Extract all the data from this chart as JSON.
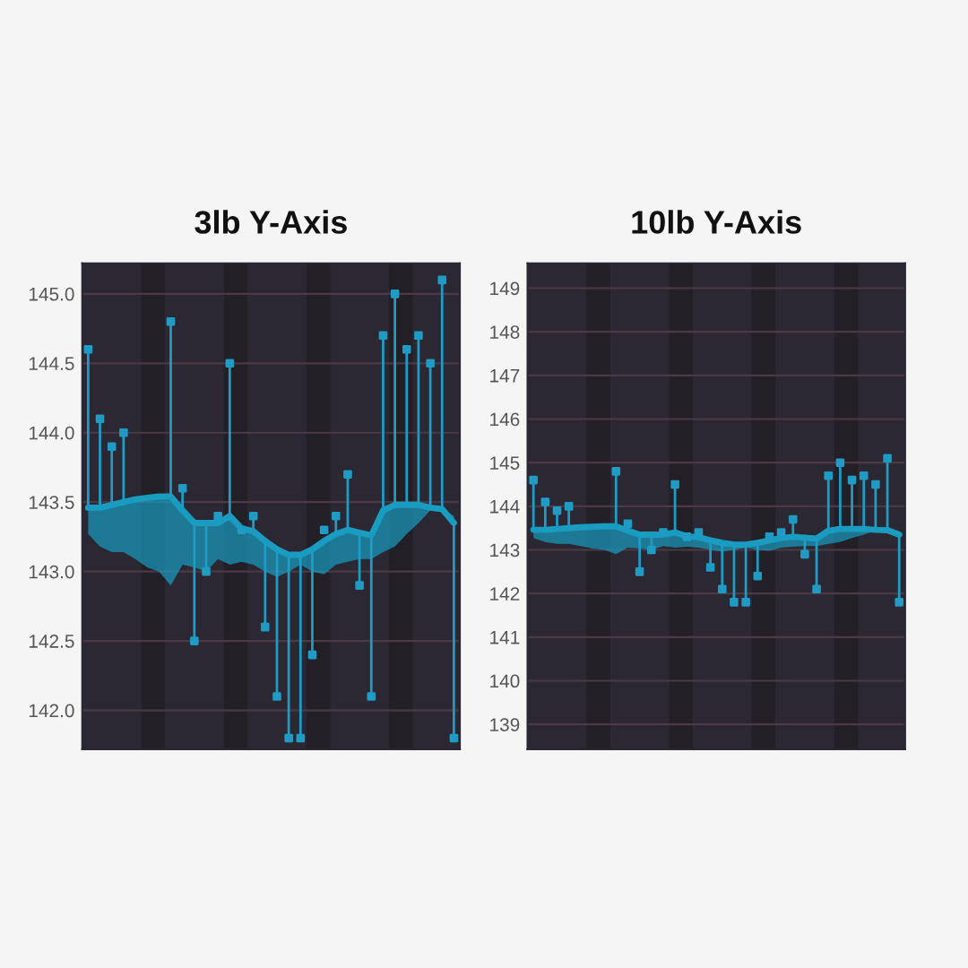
{
  "chart_data": [
    {
      "type": "line",
      "title": "3lb Y-Axis",
      "categories": [
        null,
        null,
        null,
        null,
        null,
        null,
        null,
        null,
        null,
        null,
        null,
        null,
        null,
        null,
        null,
        null,
        null,
        null,
        null,
        null,
        null,
        null,
        null,
        null,
        null,
        null,
        null,
        null,
        null,
        null,
        null,
        null
      ],
      "series": [
        {
          "color": "#1a9bc0",
          "values": [
            143.46,
            143.46,
            143.48,
            143.5,
            143.52,
            143.53,
            143.54,
            143.54,
            143.44,
            143.35,
            143.35,
            143.35,
            143.4,
            143.31,
            143.29,
            143.22,
            143.16,
            143.12,
            143.12,
            143.16,
            143.22,
            143.27,
            143.3,
            143.28,
            143.26,
            143.44,
            143.48,
            143.48,
            143.48,
            143.46,
            143.45,
            143.35
          ],
          "lower": [
            143.27,
            143.18,
            143.14,
            143.14,
            143.09,
            143.03,
            143.0,
            142.9,
            143.05,
            143.03,
            143.0,
            143.09,
            143.05,
            143.07,
            143.05,
            143.0,
            142.96,
            143.0,
            143.05,
            143.0,
            142.98,
            143.05,
            143.07,
            143.09,
            143.09,
            143.14,
            143.18,
            143.27,
            143.35,
            143.44,
            143.45,
            143.4
          ],
          "upper": [
            143.46,
            143.46,
            143.48,
            143.5,
            143.52,
            143.53,
            143.54,
            143.54,
            143.44,
            143.35,
            143.35,
            143.35,
            143.4,
            143.31,
            143.29,
            143.22,
            143.16,
            143.12,
            143.12,
            143.16,
            143.22,
            143.27,
            143.3,
            143.28,
            143.26,
            143.44,
            143.48,
            143.48,
            143.48,
            143.46,
            143.45,
            143.35
          ]
        },
        {
          "type": "scatter",
          "color": "#1f9bc4",
          "marker": "square",
          "values": [
            144.6,
            144.1,
            143.9,
            144.0,
            null,
            null,
            null,
            144.8,
            143.6,
            142.5,
            143.0,
            143.4,
            144.5,
            143.3,
            143.4,
            142.6,
            142.1,
            141.8,
            141.8,
            142.4,
            143.3,
            143.4,
            143.7,
            142.9,
            142.1,
            144.7,
            145.0,
            144.6,
            144.7,
            144.5,
            145.1,
            141.8
          ],
          "errors": [
            [
              143.46,
              144.6
            ],
            [
              143.46,
              144.1
            ],
            [
              143.48,
              143.9
            ],
            [
              143.5,
              144.0
            ],
            null,
            null,
            null,
            [
              143.54,
              144.8
            ],
            [
              143.44,
              143.6
            ],
            [
              142.5,
              143.35
            ],
            [
              143.0,
              143.35
            ],
            null,
            [
              143.4,
              144.5
            ],
            null,
            [
              143.29,
              143.4
            ],
            [
              142.6,
              143.22
            ],
            [
              142.1,
              143.16
            ],
            [
              141.8,
              143.12
            ],
            [
              141.8,
              143.12
            ],
            [
              142.4,
              143.16
            ],
            null,
            [
              143.27,
              143.4
            ],
            [
              143.3,
              143.7
            ],
            [
              142.9,
              143.28
            ],
            [
              142.1,
              143.26
            ],
            [
              143.44,
              144.7
            ],
            [
              143.48,
              145.0
            ],
            [
              143.48,
              144.6
            ],
            [
              143.48,
              144.7
            ],
            [
              143.46,
              144.5
            ],
            [
              143.45,
              145.1
            ],
            [
              141.8,
              143.35
            ]
          ]
        }
      ],
      "ylim": [
        141.72,
        145.22
      ],
      "yticks": [
        {
          "value": 142,
          "label": "142.0"
        },
        {
          "value": 142.5,
          "label": "142.5"
        },
        {
          "value": 143,
          "label": "143.0"
        },
        {
          "value": 143.5,
          "label": "143.5"
        },
        {
          "value": 144,
          "label": "144.0"
        },
        {
          "value": 144.5,
          "label": "144.5"
        },
        {
          "value": 145,
          "label": "145.0"
        }
      ],
      "grid": "y",
      "tick_labels": "y"
    },
    {
      "type": "line",
      "title": "10lb Y-Axis",
      "categories": [
        null,
        null,
        null,
        null,
        null,
        null,
        null,
        null,
        null,
        null,
        null,
        null,
        null,
        null,
        null,
        null,
        null,
        null,
        null,
        null,
        null,
        null,
        null,
        null,
        null,
        null,
        null,
        null,
        null,
        null,
        null,
        null
      ],
      "series": [
        {
          "color": "#1a9bc0",
          "values": [
            143.46,
            143.46,
            143.48,
            143.5,
            143.52,
            143.53,
            143.54,
            143.54,
            143.44,
            143.35,
            143.35,
            143.35,
            143.4,
            143.31,
            143.29,
            143.22,
            143.16,
            143.12,
            143.12,
            143.16,
            143.22,
            143.27,
            143.3,
            143.28,
            143.26,
            143.44,
            143.48,
            143.48,
            143.48,
            143.46,
            143.45,
            143.35
          ],
          "lower": [
            143.27,
            143.18,
            143.14,
            143.14,
            143.09,
            143.03,
            143.0,
            142.9,
            143.05,
            143.03,
            143.0,
            143.09,
            143.05,
            143.07,
            143.05,
            143.0,
            142.96,
            143.0,
            143.05,
            143.0,
            142.98,
            143.05,
            143.07,
            143.09,
            143.09,
            143.14,
            143.18,
            143.27,
            143.35,
            143.44,
            143.45,
            143.4
          ],
          "upper": [
            143.46,
            143.46,
            143.48,
            143.5,
            143.52,
            143.53,
            143.54,
            143.54,
            143.44,
            143.35,
            143.35,
            143.35,
            143.4,
            143.31,
            143.29,
            143.22,
            143.16,
            143.12,
            143.12,
            143.16,
            143.22,
            143.27,
            143.3,
            143.28,
            143.26,
            143.44,
            143.48,
            143.48,
            143.48,
            143.46,
            143.45,
            143.35
          ]
        },
        {
          "type": "scatter",
          "color": "#1f9bc4",
          "marker": "square",
          "values": [
            144.6,
            144.1,
            143.9,
            144.0,
            null,
            null,
            null,
            144.8,
            143.6,
            142.5,
            143.0,
            143.4,
            144.5,
            143.3,
            143.4,
            142.6,
            142.1,
            141.8,
            141.8,
            142.4,
            143.3,
            143.4,
            143.7,
            142.9,
            142.1,
            144.7,
            145.0,
            144.6,
            144.7,
            144.5,
            145.1,
            141.8
          ],
          "errors": [
            [
              143.46,
              144.6
            ],
            [
              143.46,
              144.1
            ],
            [
              143.48,
              143.9
            ],
            [
              143.5,
              144.0
            ],
            null,
            null,
            null,
            [
              143.54,
              144.8
            ],
            null,
            [
              142.5,
              143.35
            ],
            [
              143.0,
              143.35
            ],
            null,
            [
              143.4,
              144.5
            ],
            null,
            null,
            [
              142.6,
              143.22
            ],
            [
              142.1,
              143.16
            ],
            [
              141.8,
              143.12
            ],
            [
              141.8,
              143.12
            ],
            [
              142.4,
              143.16
            ],
            null,
            null,
            [
              143.3,
              143.7
            ],
            [
              142.9,
              143.28
            ],
            [
              142.1,
              143.26
            ],
            [
              143.44,
              144.7
            ],
            [
              143.48,
              145.0
            ],
            [
              143.48,
              144.6
            ],
            [
              143.48,
              144.7
            ],
            [
              143.46,
              144.5
            ],
            [
              143.45,
              145.1
            ],
            [
              141.8,
              143.35
            ]
          ]
        }
      ],
      "ylim": [
        138.43,
        149.57
      ],
      "yticks": [
        139,
        140,
        141,
        142,
        143,
        144,
        145,
        146,
        147,
        148,
        149
      ],
      "grid": "y",
      "tick_labels": "y"
    }
  ]
}
